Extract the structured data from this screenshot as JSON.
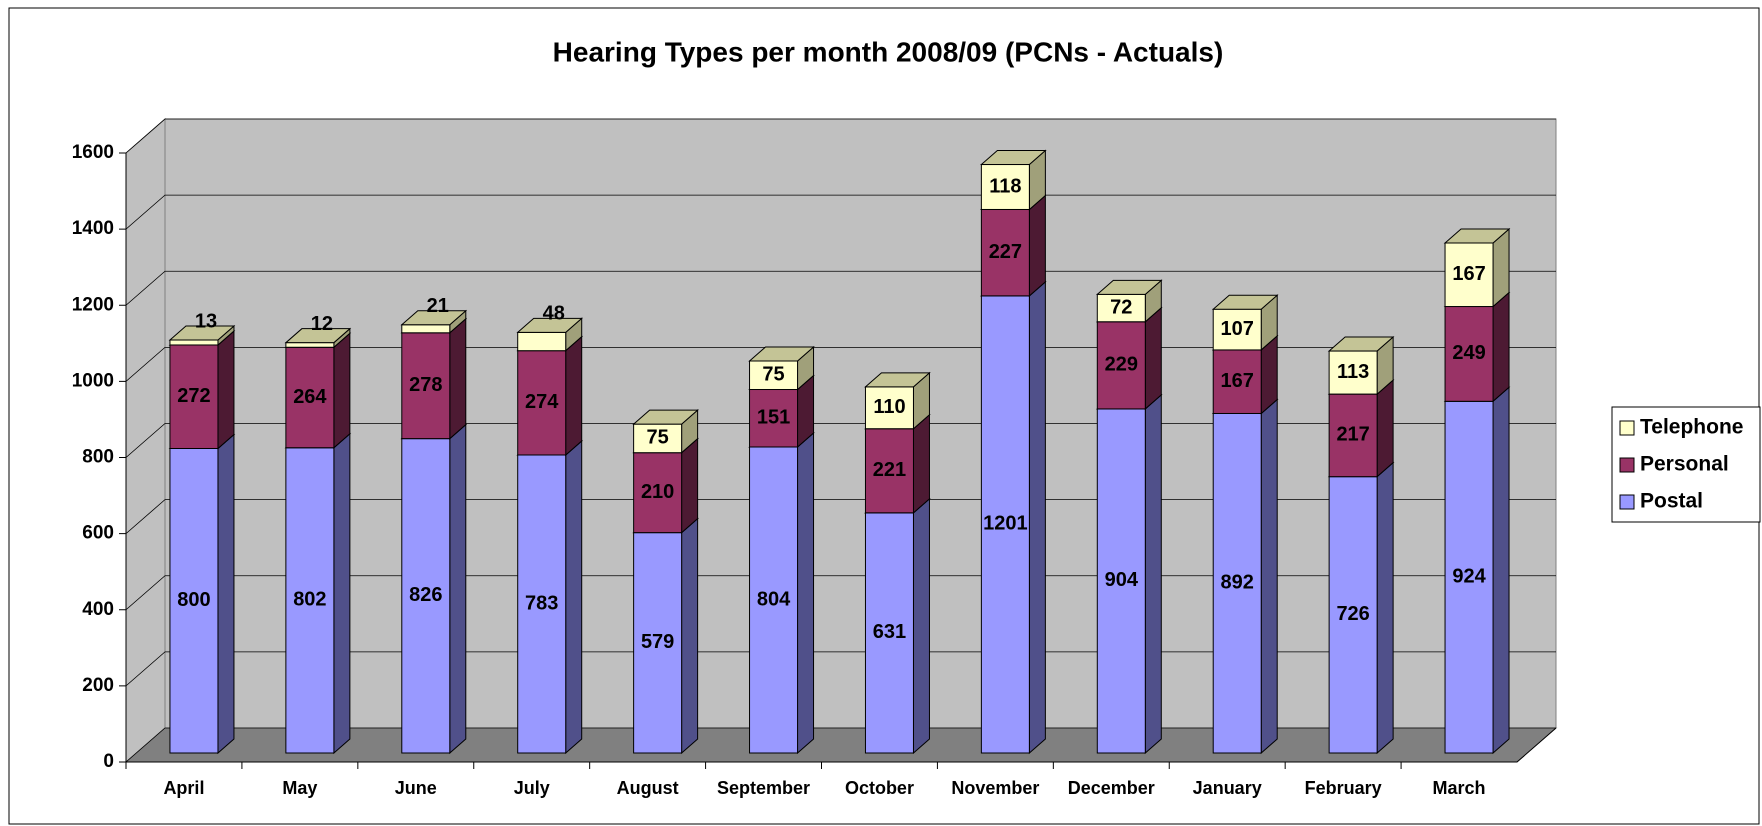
{
  "chart_data": {
    "type": "bar3d-stacked",
    "title": "Hearing Types per month 2008/09 (PCNs - Actuals)",
    "categories": [
      "April",
      "May",
      "June",
      "July",
      "August",
      "September",
      "October",
      "November",
      "December",
      "January",
      "February",
      "March"
    ],
    "series": [
      {
        "name": "Postal",
        "color": "#9999ff",
        "values": [
          800,
          802,
          826,
          783,
          579,
          804,
          631,
          1201,
          904,
          892,
          726,
          924
        ]
      },
      {
        "name": "Personal",
        "color": "#993366",
        "values": [
          272,
          264,
          278,
          274,
          210,
          151,
          221,
          227,
          229,
          167,
          217,
          249
        ]
      },
      {
        "name": "Telephone",
        "color": "#ffffcc",
        "values": [
          13,
          12,
          21,
          48,
          75,
          75,
          110,
          118,
          72,
          107,
          113,
          167
        ]
      }
    ],
    "ylim": [
      0,
      1600
    ],
    "yticks": [
      0,
      200,
      400,
      600,
      800,
      1000,
      1200,
      1400,
      1600
    ],
    "grid": true,
    "legend": "right"
  }
}
